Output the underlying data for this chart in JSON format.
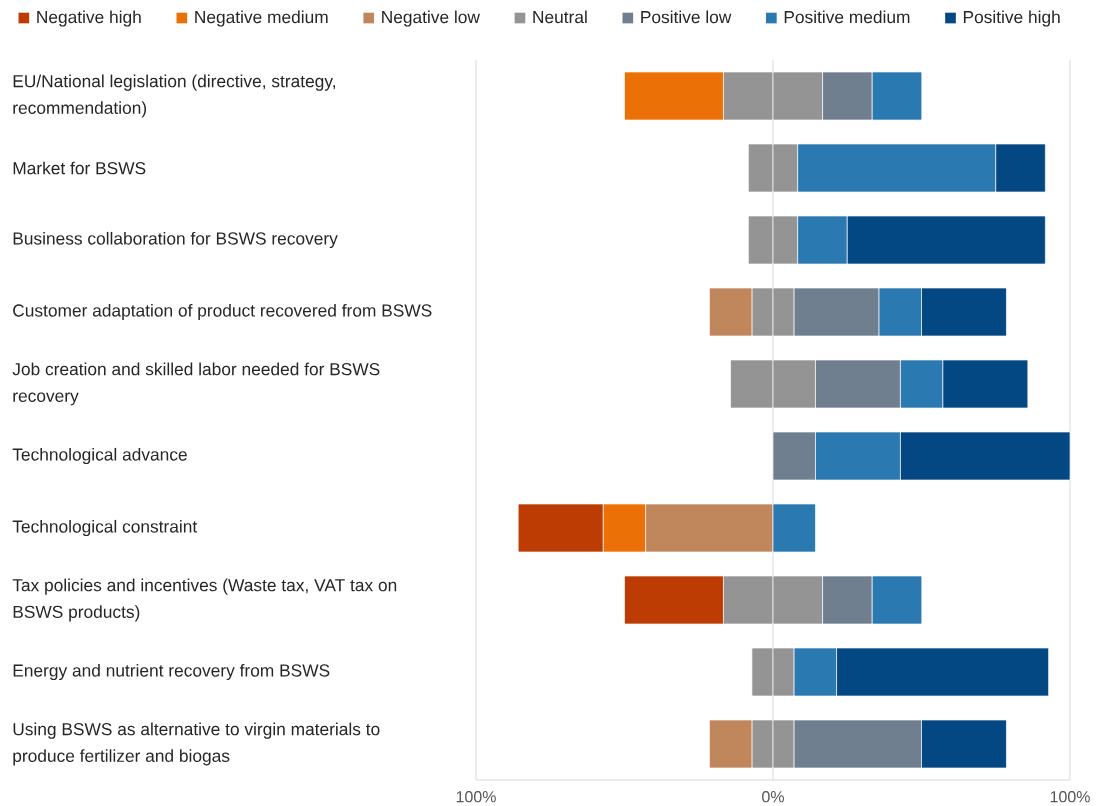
{
  "chart_data": {
    "type": "bar",
    "orientation": "horizontal",
    "stacked": true,
    "categories": [
      "EU/National legislation (directive, strategy, recommendation)",
      "Market for BSWS",
      "Business collaboration for BSWS recovery",
      "Customer adaptation of product recovered from BSWS",
      "Job creation and skilled labor needed for BSWS recovery",
      "Technological advance",
      "Technological constraint",
      "Tax policies and incentives (Waste tax, VAT tax on BSWS products)",
      "Energy and nutrient recovery from BSWS",
      "Using BSWS as alternative to virgin materials to produce fertilizer and biogas"
    ],
    "series": [
      {
        "color": "#949494",
        "values": [
          -16.7,
          -8.3,
          -8.3,
          -7.1,
          -14.3,
          null,
          null,
          -16.7,
          -7.1,
          -7.1
        ]
      },
      {
        "name": "Negative low",
        "color": "#c0875c",
        "values": [
          null,
          null,
          null,
          -14.3,
          null,
          null,
          -42.9,
          null,
          null,
          -14.3
        ]
      },
      {
        "name": "Negative medium",
        "color": "#eb7006",
        "values": [
          -33.3,
          null,
          null,
          null,
          null,
          null,
          -14.3,
          null,
          null,
          null
        ]
      },
      {
        "name": "Negative high",
        "color": "#bc3c04",
        "values": [
          null,
          null,
          null,
          null,
          null,
          null,
          -28.6,
          -33.3,
          null,
          null
        ]
      },
      {
        "name": "Neutral",
        "color": "#949494",
        "values": [
          16.7,
          8.3,
          8.3,
          7.1,
          14.3,
          null,
          null,
          16.7,
          7.1,
          7.1
        ]
      },
      {
        "name": "Positive low",
        "color": "#6f7f8f",
        "values": [
          16.7,
          null,
          null,
          28.6,
          28.6,
          14.3,
          null,
          16.7,
          null,
          42.9
        ]
      },
      {
        "name": "Positive medium",
        "color": "#2b79b1",
        "values": [
          16.7,
          66.7,
          16.7,
          14.3,
          14.3,
          28.6,
          14.3,
          16.7,
          14.3,
          null
        ]
      },
      {
        "name": "Positive high",
        "color": "#034882",
        "values": [
          null,
          16.7,
          66.7,
          28.6,
          28.6,
          57.1,
          null,
          null,
          71.4,
          28.6
        ]
      }
    ],
    "xlim": [
      -100,
      100
    ],
    "xticks": [
      {
        "value": 100,
        "label": "100%"
      },
      {
        "value": 0,
        "label": "0%"
      },
      {
        "value": -100,
        "label": "100%"
      }
    ],
    "grid": "x",
    "legend": "top"
  }
}
